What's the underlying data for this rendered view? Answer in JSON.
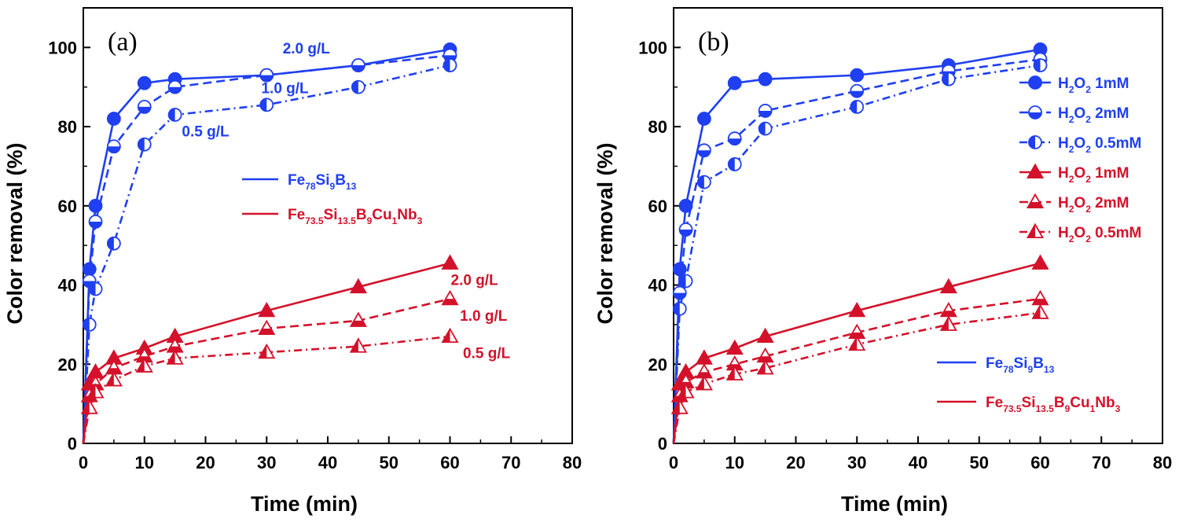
{
  "colors": {
    "blue": "#1f3ff0",
    "red": "#d4112a",
    "axis": "#000000"
  },
  "chart_data": [
    {
      "type": "line",
      "panel_label": "(a)",
      "xlabel": "Time (min)",
      "ylabel": "Color removal (%)",
      "xlim": [
        0,
        80
      ],
      "ylim": [
        0,
        110
      ],
      "xticks": [
        0,
        10,
        20,
        30,
        40,
        50,
        60,
        70,
        80
      ],
      "yticks": [
        0,
        20,
        40,
        60,
        80,
        100
      ],
      "series": [
        {
          "name": "Fe78Si9B13 2.0 g/L",
          "color": "blue",
          "marker": "circle",
          "fill": "full",
          "dash": "solid",
          "x": [
            0,
            1,
            2,
            5,
            10,
            15,
            30,
            45,
            60
          ],
          "y": [
            0,
            44,
            60,
            82,
            91,
            92,
            93,
            95.5,
            99.5
          ]
        },
        {
          "name": "Fe78Si9B13 1.0 g/L",
          "color": "blue",
          "marker": "circle",
          "fill": "bottom",
          "dash": "dashed",
          "x": [
            0,
            1,
            2,
            5,
            10,
            15,
            30,
            45,
            60
          ],
          "y": [
            0,
            41,
            56,
            75,
            85,
            90,
            93,
            95.5,
            98
          ]
        },
        {
          "name": "Fe78Si9B13 0.5 g/L",
          "color": "blue",
          "marker": "circle",
          "fill": "left",
          "dash": "dashdot",
          "x": [
            0,
            1,
            2,
            5,
            10,
            15,
            30,
            45,
            60
          ],
          "y": [
            0,
            30,
            39,
            50.5,
            75.5,
            83,
            85.5,
            90,
            95.5
          ]
        },
        {
          "name": "Fe73.5Si13.5B9Cu1Nb3 2.0 g/L",
          "color": "red",
          "marker": "triangle",
          "fill": "full",
          "dash": "solid",
          "x": [
            0,
            1,
            2,
            5,
            10,
            15,
            30,
            45,
            60
          ],
          "y": [
            0,
            15,
            18,
            21.5,
            24,
            27,
            33.5,
            39.5,
            45.5
          ]
        },
        {
          "name": "Fe73.5Si13.5B9Cu1Nb3 1.0 g/L",
          "color": "red",
          "marker": "triangle",
          "fill": "bottom",
          "dash": "dashed",
          "x": [
            0,
            1,
            2,
            5,
            10,
            15,
            30,
            45,
            60
          ],
          "y": [
            0,
            12,
            15,
            19,
            22,
            24.5,
            29,
            31,
            36.5
          ]
        },
        {
          "name": "Fe73.5Si13.5B9Cu1Nb3 0.5 g/L",
          "color": "red",
          "marker": "triangle",
          "fill": "left",
          "dash": "dashdot",
          "x": [
            0,
            1,
            2,
            5,
            10,
            15,
            30,
            45,
            60
          ],
          "y": [
            0,
            9,
            13,
            16,
            19.5,
            21.5,
            23,
            24.5,
            27
          ]
        }
      ],
      "annotations": [
        {
          "text": "2.0 g/L",
          "color": "blue",
          "x": 36.5,
          "y": 98.5
        },
        {
          "text": "1.0 g/L",
          "color": "blue",
          "x": 33,
          "y": 88.5
        },
        {
          "text": "0.5 g/L",
          "color": "blue",
          "x": 20,
          "y": 77.5
        },
        {
          "text": "2.0 g/L",
          "color": "red",
          "x": 64,
          "y": 40
        },
        {
          "text": "1.0 g/L",
          "color": "red",
          "x": 65.5,
          "y": 31
        },
        {
          "text": "0.5 g/L",
          "color": "red",
          "x": 66,
          "y": 21.5
        }
      ],
      "legend": {
        "position": "center",
        "items": [
          {
            "color": "blue",
            "base": "Fe",
            "parts": [
              [
                "78",
                "Si"
              ],
              [
                "9",
                "B"
              ],
              [
                "13",
                ""
              ]
            ]
          },
          {
            "color": "red",
            "base": "Fe",
            "parts": [
              [
                "73.5",
                "Si"
              ],
              [
                "13.5",
                "B"
              ],
              [
                "9",
                "Cu"
              ],
              [
                "1",
                "Nb"
              ],
              [
                "3",
                ""
              ]
            ]
          }
        ]
      }
    },
    {
      "type": "line",
      "panel_label": "(b)",
      "xlabel": "Time (min)",
      "ylabel": "Color removal (%)",
      "xlim": [
        0,
        80
      ],
      "ylim": [
        0,
        110
      ],
      "xticks": [
        0,
        10,
        20,
        30,
        40,
        50,
        60,
        70,
        80
      ],
      "yticks": [
        0,
        20,
        40,
        60,
        80,
        100
      ],
      "series": [
        {
          "name": "Fe78Si9B13 H2O2 1mM",
          "color": "blue",
          "marker": "circle",
          "fill": "full",
          "dash": "solid",
          "x": [
            0,
            1,
            2,
            5,
            10,
            15,
            30,
            45,
            60
          ],
          "y": [
            0,
            44,
            60,
            82,
            91,
            92,
            93,
            95.5,
            99.5
          ]
        },
        {
          "name": "Fe78Si9B13 H2O2 2mM",
          "color": "blue",
          "marker": "circle",
          "fill": "bottom",
          "dash": "dashed",
          "x": [
            0,
            1,
            2,
            5,
            10,
            15,
            30,
            45,
            60
          ],
          "y": [
            0,
            38,
            54,
            74,
            77,
            84,
            89,
            94,
            97
          ]
        },
        {
          "name": "Fe78Si9B13 H2O2 0.5mM",
          "color": "blue",
          "marker": "circle",
          "fill": "left",
          "dash": "dashdot",
          "x": [
            0,
            1,
            2,
            5,
            10,
            15,
            30,
            45,
            60
          ],
          "y": [
            0,
            34,
            41,
            66,
            70.5,
            79.5,
            85,
            92,
            95.5
          ]
        },
        {
          "name": "Fe73.5Si13.5B9Cu1Nb3 H2O2 1mM",
          "color": "red",
          "marker": "triangle",
          "fill": "full",
          "dash": "solid",
          "x": [
            0,
            1,
            2,
            5,
            10,
            15,
            30,
            45,
            60
          ],
          "y": [
            0,
            15,
            18,
            21.5,
            24,
            27,
            33.5,
            39.5,
            45.5
          ]
        },
        {
          "name": "Fe73.5Si13.5B9Cu1Nb3 H2O2 2mM",
          "color": "red",
          "marker": "triangle",
          "fill": "bottom",
          "dash": "dashed",
          "x": [
            0,
            1,
            2,
            5,
            10,
            15,
            30,
            45,
            60
          ],
          "y": [
            0,
            12,
            15.5,
            18,
            20,
            22,
            28,
            33.5,
            36.5
          ]
        },
        {
          "name": "Fe73.5Si13.5B9Cu1Nb3 H2O2 0.5mM",
          "color": "red",
          "marker": "triangle",
          "fill": "left",
          "dash": "dashdot",
          "x": [
            0,
            1,
            2,
            5,
            10,
            15,
            30,
            45,
            60
          ],
          "y": [
            0,
            9,
            13,
            15,
            17.5,
            19,
            25,
            30,
            33
          ]
        }
      ],
      "legend_top": {
        "position": "top-right",
        "items": [
          {
            "color": "blue",
            "pre": "H",
            "sub1": "2",
            "mid": "O",
            "sub2": "2",
            "post": " 1mM",
            "marker": "circle",
            "fill": "full",
            "dash": "solid"
          },
          {
            "color": "blue",
            "pre": "H",
            "sub1": "2",
            "mid": "O",
            "sub2": "2",
            "post": " 2mM",
            "marker": "circle",
            "fill": "bottom",
            "dash": "dashed"
          },
          {
            "color": "blue",
            "pre": "H",
            "sub1": "2",
            "mid": "O",
            "sub2": "2",
            "post": " 0.5mM",
            "marker": "circle",
            "fill": "left",
            "dash": "dashdot"
          },
          {
            "color": "red",
            "pre": "H",
            "sub1": "2",
            "mid": "O",
            "sub2": "2",
            "post": " 1mM",
            "marker": "triangle",
            "fill": "full",
            "dash": "solid"
          },
          {
            "color": "red",
            "pre": "H",
            "sub1": "2",
            "mid": "O",
            "sub2": "2",
            "post": " 2mM",
            "marker": "triangle",
            "fill": "bottom",
            "dash": "dashed"
          },
          {
            "color": "red",
            "pre": "H",
            "sub1": "2",
            "mid": "O",
            "sub2": "2",
            "post": " 0.5mM",
            "marker": "triangle",
            "fill": "left",
            "dash": "dashdot"
          }
        ]
      },
      "legend": {
        "position": "bottom-right",
        "items": [
          {
            "color": "blue",
            "base": "Fe",
            "parts": [
              [
                "78",
                "Si"
              ],
              [
                "9",
                "B"
              ],
              [
                "13",
                ""
              ]
            ]
          },
          {
            "color": "red",
            "base": "Fe",
            "parts": [
              [
                "73.5",
                "Si"
              ],
              [
                "13.5",
                "B"
              ],
              [
                "9",
                "Cu"
              ],
              [
                "1",
                "Nb"
              ],
              [
                "3",
                ""
              ]
            ]
          }
        ]
      }
    }
  ]
}
